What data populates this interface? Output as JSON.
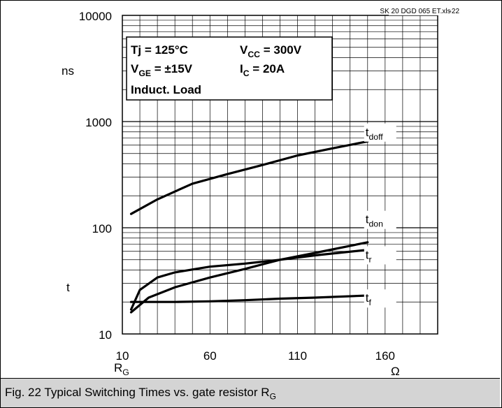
{
  "chart_data": {
    "type": "line",
    "title": "",
    "source_tag": "SK 20 DGD 065 ET.xls",
    "figure_tag": "-22",
    "y_scale": "log",
    "ylim": [
      10,
      10000
    ],
    "xlim": [
      10,
      190
    ],
    "y_ticks": [
      "10",
      "100",
      "1000",
      "10000"
    ],
    "x_ticks": [
      "10",
      "60",
      "110",
      "160"
    ],
    "y_unit": "ns",
    "y_label": "t",
    "x_label": "R",
    "x_label_sub": "G",
    "x_unit": "Ω",
    "grid": true,
    "conditions": [
      {
        "text": "Tj = 125°C"
      },
      {
        "main": "V",
        "sub": "CC",
        "rest": " = 300V"
      },
      {
        "main": "V",
        "sub": "GE",
        "rest": " = ±15V"
      },
      {
        "main": "I",
        "sub": "C",
        "rest": "  = 20A"
      },
      {
        "text": "Induct. Load"
      }
    ],
    "series": [
      {
        "name": "t",
        "sub": "doff",
        "label_at": [
          150,
          730
        ],
        "x": [
          15,
          30,
          50,
          70,
          90,
          110,
          130,
          150
        ],
        "y": [
          135,
          185,
          260,
          320,
          390,
          480,
          560,
          650
        ]
      },
      {
        "name": "t",
        "sub": "don",
        "label_at": [
          150,
          110
        ],
        "x": [
          15,
          25,
          40,
          60,
          80,
          100,
          120,
          150
        ],
        "y": [
          16,
          22,
          27.5,
          34,
          41,
          50,
          58,
          73
        ]
      },
      {
        "name": "t",
        "sub": "r",
        "label_at": [
          150,
          51
        ],
        "x": [
          15,
          20,
          30,
          40,
          60,
          80,
          100,
          120,
          150
        ],
        "y": [
          17,
          26,
          34,
          38,
          43,
          46,
          50,
          55,
          62
        ]
      },
      {
        "name": "t",
        "sub": "f",
        "label_at": [
          150,
          20
        ],
        "x": [
          15,
          18,
          25,
          40,
          60,
          80,
          100,
          120,
          150
        ],
        "y": [
          20,
          20,
          20,
          20,
          20.3,
          20.8,
          21.5,
          22,
          23
        ]
      }
    ]
  },
  "caption": {
    "text": "Fig. 22 Typical Switching Times vs. gate resistor R",
    "sub": "G"
  }
}
